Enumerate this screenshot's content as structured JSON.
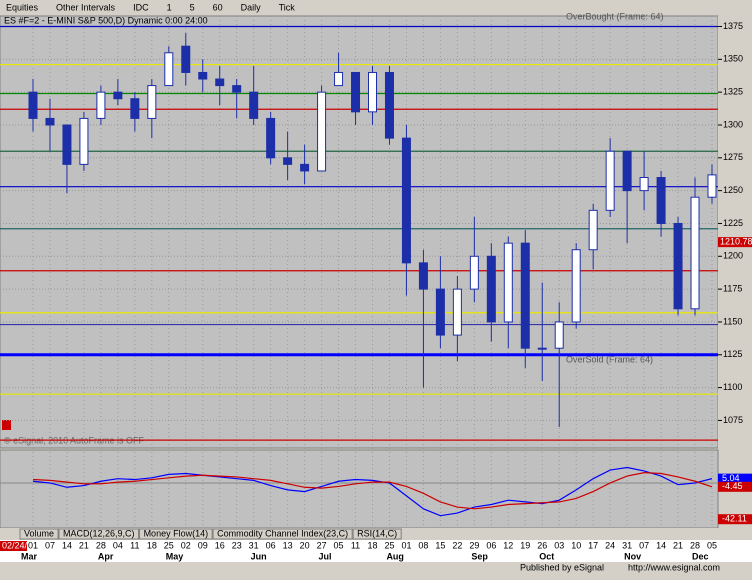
{
  "toolbar": {
    "items": [
      "Equities",
      "Other Intervals",
      "IDC",
      "1",
      "5",
      "60",
      "Daily",
      "Tick"
    ]
  },
  "chart_data": {
    "type": "candlestick",
    "title": "ES #F=2 - E-MINI S&P 500,D) Dynamic 0:00 24:00",
    "start_date": "02/24/11",
    "categories": [
      "01",
      "07",
      "14",
      "21",
      "28",
      "04",
      "11",
      "18",
      "25",
      "02",
      "09",
      "16",
      "23",
      "31",
      "06",
      "13",
      "20",
      "27",
      "05",
      "11",
      "18",
      "25",
      "01",
      "08",
      "15",
      "22",
      "29",
      "06",
      "12",
      "19",
      "26",
      "03",
      "10",
      "17",
      "24",
      "31",
      "07",
      "14",
      "21",
      "28",
      "05"
    ],
    "months": [
      "Mar",
      "Apr",
      "May",
      "Jun",
      "Jul",
      "Aug",
      "Sep",
      "Oct",
      "Nov",
      "Dec"
    ],
    "series": {
      "open": [
        1325,
        1305,
        1300,
        1270,
        1305,
        1325,
        1320,
        1305,
        1330,
        1360,
        1340,
        1335,
        1330,
        1325,
        1305,
        1275,
        1270,
        1265,
        1330,
        1340,
        1310,
        1340,
        1290,
        1195,
        1175,
        1140,
        1175,
        1200,
        1150,
        1210,
        1130,
        1130,
        1150,
        1205,
        1235,
        1280,
        1250,
        1260,
        1225,
        1160,
        1245
      ],
      "high": [
        1335,
        1320,
        1300,
        1310,
        1330,
        1335,
        1325,
        1335,
        1360,
        1370,
        1350,
        1345,
        1335,
        1345,
        1310,
        1295,
        1285,
        1330,
        1355,
        1340,
        1345,
        1345,
        1300,
        1205,
        1200,
        1185,
        1230,
        1210,
        1215,
        1220,
        1180,
        1165,
        1210,
        1240,
        1290,
        1280,
        1280,
        1265,
        1230,
        1260,
        1270
      ],
      "low": [
        1295,
        1280,
        1248,
        1265,
        1300,
        1315,
        1295,
        1290,
        1330,
        1330,
        1325,
        1315,
        1305,
        1300,
        1270,
        1258,
        1255,
        1265,
        1330,
        1300,
        1300,
        1285,
        1170,
        1100,
        1130,
        1120,
        1165,
        1135,
        1130,
        1115,
        1105,
        1070,
        1145,
        1190,
        1230,
        1210,
        1235,
        1215,
        1155,
        1155,
        1240
      ],
      "close": [
        1305,
        1300,
        1270,
        1305,
        1325,
        1320,
        1305,
        1330,
        1355,
        1340,
        1335,
        1330,
        1325,
        1305,
        1275,
        1270,
        1265,
        1325,
        1340,
        1310,
        1340,
        1290,
        1195,
        1175,
        1140,
        1175,
        1200,
        1150,
        1210,
        1130,
        1130,
        1150,
        1205,
        1235,
        1280,
        1250,
        1260,
        1225,
        1160,
        1245,
        1262
      ]
    },
    "up_color": "#ffffff",
    "down_color": "#1c2fa8",
    "ylim": [
      1054,
      1383
    ],
    "yticks": [
      1375,
      1350,
      1325,
      1300,
      1275,
      1250,
      1225,
      1200,
      1175,
      1150,
      1125,
      1100,
      1075
    ],
    "grid": true,
    "levels": [
      {
        "value": 1375,
        "color": "#0000cc"
      },
      {
        "value": 1346,
        "color": "#e8e800"
      },
      {
        "value": 1324,
        "color": "#008800"
      },
      {
        "value": 1312,
        "color": "#cc0000"
      },
      {
        "value": 1280,
        "color": "#226644"
      },
      {
        "value": 1253,
        "color": "#0000cc"
      },
      {
        "value": 1221,
        "color": "#226666"
      },
      {
        "value": 1189,
        "color": "#cc0000"
      },
      {
        "value": 1157,
        "color": "#e8e800"
      },
      {
        "value": 1148,
        "color": "#3333aa"
      },
      {
        "value": 1125,
        "color": "#0000ff"
      },
      {
        "value": 1095,
        "color": "#e8e800"
      },
      {
        "value": 1060,
        "color": "#cc0000"
      }
    ],
    "price_marker": {
      "value": 1210.78,
      "label": "1210.78",
      "color": "#cc0000"
    },
    "annotations": [
      "OverBought (Frame: 64)",
      "OverSold (Frame: 64)",
      "AutoFrame is OFF",
      "© eSignal, 2010"
    ],
    "indicator": {
      "tabs": [
        "Volume",
        "MACD(12,26,9,C)",
        "Money Flow(14)",
        "Commodity Channel Index(23,C)",
        "RSI(14,C)"
      ],
      "ylim": [
        -50,
        36
      ],
      "macd": {
        "name": "MACD",
        "color": "#0000ff",
        "values": [
          2,
          0,
          -5,
          -3,
          2,
          5,
          4,
          6,
          10,
          11,
          9,
          7,
          5,
          3,
          -3,
          -8,
          -10,
          -4,
          2,
          4,
          3,
          0,
          -15,
          -30,
          -38,
          -35,
          -28,
          -25,
          -20,
          -22,
          -24,
          -20,
          -8,
          5,
          15,
          18,
          14,
          8,
          -2,
          0,
          5.04
        ]
      },
      "signal": {
        "name": "Signal",
        "color": "#cc0000",
        "values": [
          4,
          3,
          1,
          -1,
          -1,
          1,
          2,
          4,
          6,
          8,
          9,
          8,
          7,
          5,
          3,
          -1,
          -5,
          -6,
          -4,
          -1,
          1,
          1,
          -4,
          -12,
          -22,
          -28,
          -30,
          -28,
          -25,
          -24,
          -23,
          -22,
          -18,
          -10,
          0,
          8,
          12,
          11,
          7,
          2,
          -4.45
        ]
      },
      "scale_label": -42.11
    },
    "footer": [
      "Published by eSignal",
      "http://www.esignal.com"
    ]
  }
}
